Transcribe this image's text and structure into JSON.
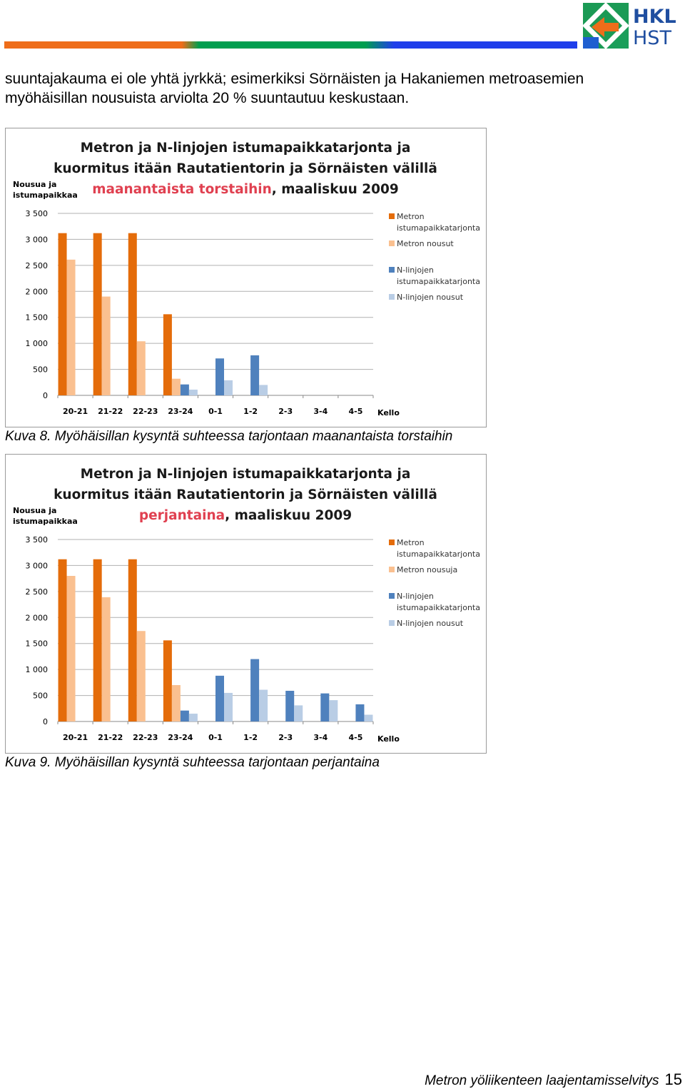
{
  "page": {
    "body_lines": [
      "suuntajakauma ei ole yhtä jyrkkä; esimerkiksi Sörnäisten ja Hakaniemen metroasemien",
      "myöhäisillan nousuista arviolta 20 % suuntautuu keskustaan."
    ],
    "logo_text": [
      "HKL",
      "HST"
    ],
    "footer_title": "Metron yöliikenteen laajentamisselvitys",
    "footer_page": "15",
    "colors": {
      "bar_orange": "#ee6d1a",
      "bar_green": "#009e4f",
      "bar_blue": "#1f3eea",
      "metro_supply": "#e46c0a",
      "metro_riders": "#fac090",
      "n_supply": "#4f81bd",
      "n_riders": "#b9cde5",
      "title_highlight": "#e04050"
    }
  },
  "figures": [
    {
      "caption": "Kuva 8. Myöhäisillan kysyntä suhteessa tarjontaan maanantaista torstaihin",
      "chart_data": {
        "type": "bar",
        "title_lines": [
          "Metron ja N-linjojen istumapaikkatarjonta ja",
          "kuormitus itään Rautatientorin ja Sörnäisten välillä"
        ],
        "title_highlight": "maanantaista torstaihin",
        "title_rest": ", maaliskuu 2009",
        "ylabel": [
          "Nousua ja",
          "istumapaikkaa"
        ],
        "xlabel": "Kello",
        "ylim": [
          0,
          3500
        ],
        "yticks": [
          0,
          500,
          1000,
          1500,
          2000,
          2500,
          3000,
          3500
        ],
        "ytick_labels": [
          "0",
          "500",
          "1 000",
          "1 500",
          "2 000",
          "2 500",
          "3 000",
          "3 500"
        ],
        "categories": [
          "20-21",
          "21-22",
          "22-23",
          "23-24",
          "0-1",
          "1-2",
          "2-3",
          "3-4",
          "4-5"
        ],
        "series": [
          {
            "name": "Metron istumapaikkatarjonta",
            "legend_lines": [
              "Metron",
              "istumapaikkatarjonta"
            ],
            "values": [
              3120,
              3120,
              3120,
              1560,
              0,
              0,
              0,
              0,
              0
            ]
          },
          {
            "name": "Metron nousut",
            "legend_lines": [
              "Metron nousut"
            ],
            "values": [
              2610,
              1900,
              1040,
              320,
              0,
              0,
              0,
              0,
              0
            ]
          },
          {
            "name": "N-linjojen istumapaikkatarjonta",
            "legend_lines": [
              "N-linjojen",
              "istumapaikkatarjonta"
            ],
            "values": [
              0,
              0,
              0,
              210,
              710,
              770,
              0,
              0,
              0
            ]
          },
          {
            "name": "N-linjojen nousut",
            "legend_lines": [
              "N-linjojen nousut"
            ],
            "values": [
              0,
              0,
              0,
              110,
              290,
              200,
              0,
              0,
              0
            ]
          }
        ],
        "legend_position": "right",
        "grid": true
      }
    },
    {
      "caption": "Kuva 9. Myöhäisillan kysyntä suhteessa tarjontaan perjantaina",
      "chart_data": {
        "type": "bar",
        "title_lines": [
          "Metron ja N-linjojen istumapaikkatarjonta ja",
          "kuormitus itään Rautatientorin ja Sörnäisten välillä"
        ],
        "title_highlight": "perjantaina",
        "title_rest": ", maaliskuu 2009",
        "ylabel": [
          "Nousua ja",
          "istumapaikkaa"
        ],
        "xlabel": "Kello",
        "ylim": [
          0,
          3500
        ],
        "yticks": [
          0,
          500,
          1000,
          1500,
          2000,
          2500,
          3000,
          3500
        ],
        "ytick_labels": [
          "0",
          "500",
          "1 000",
          "1 500",
          "2 000",
          "2 500",
          "3 000",
          "3 500"
        ],
        "categories": [
          "20-21",
          "21-22",
          "22-23",
          "23-24",
          "0-1",
          "1-2",
          "2-3",
          "3-4",
          "4-5"
        ],
        "series": [
          {
            "name": "Metron istumapaikkatarjonta",
            "legend_lines": [
              "Metron",
              "istumapaikkatarjonta"
            ],
            "values": [
              3120,
              3120,
              3120,
              1560,
              0,
              0,
              0,
              0,
              0
            ]
          },
          {
            "name": "Metron nousuja",
            "legend_lines": [
              "Metron nousuja"
            ],
            "values": [
              2800,
              2390,
              1740,
              700,
              0,
              0,
              0,
              0,
              0
            ]
          },
          {
            "name": "N-linjojen istumapaikkatarjonta",
            "legend_lines": [
              "N-linjojen",
              "istumapaikkatarjonta"
            ],
            "values": [
              0,
              0,
              0,
              210,
              880,
              1200,
              590,
              540,
              330
            ]
          },
          {
            "name": "N-linjojen nousut",
            "legend_lines": [
              "N-linjojen nousut"
            ],
            "values": [
              0,
              0,
              0,
              150,
              550,
              610,
              310,
              410,
              130
            ]
          }
        ],
        "legend_position": "right",
        "grid": true
      }
    }
  ]
}
